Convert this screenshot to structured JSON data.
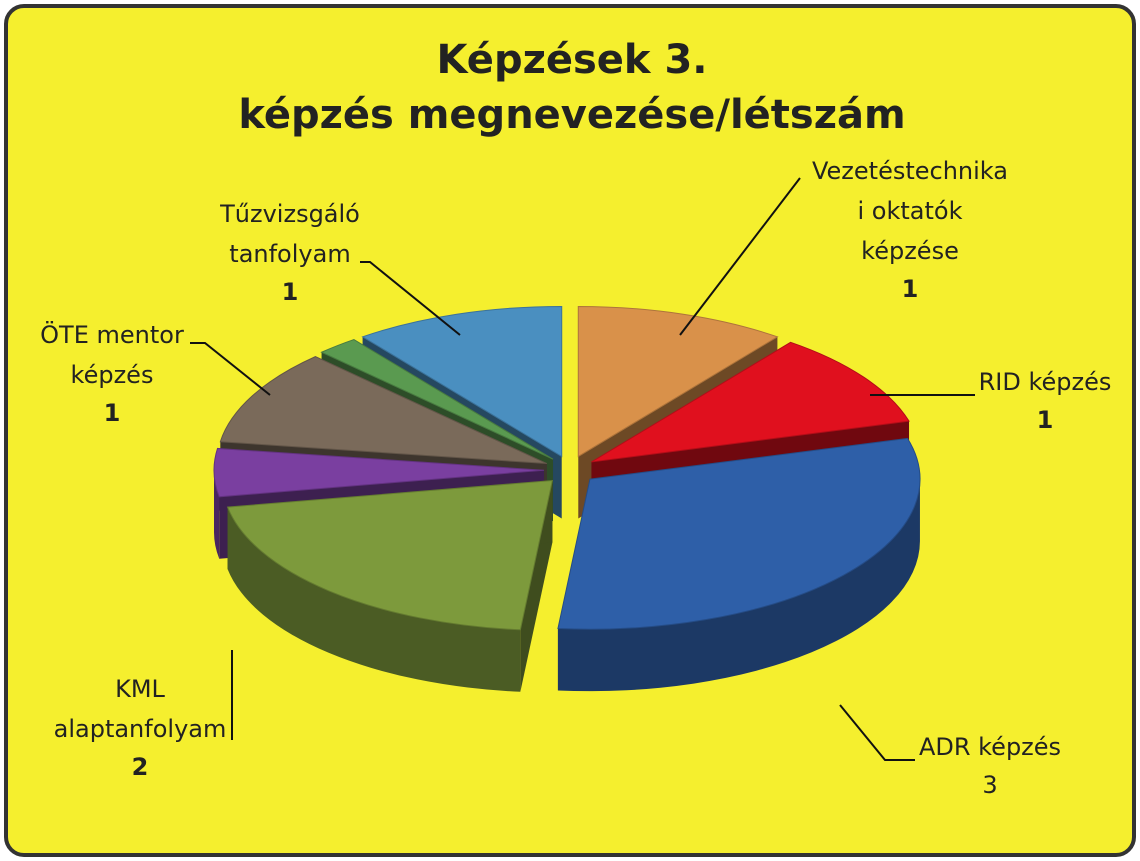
{
  "chart_data": {
    "type": "pie3d",
    "title": "Képzések 3.\nképzés megnevezése/létszám",
    "categories": [
      "Vezetéstechnika\ni oktatók\nképzése",
      "RID képzés",
      "ADR képzés",
      "KML\nalaptanfolyam",
      null,
      "ÖTE mentor\nképzés",
      null,
      "Tűzvizsgáló\ntanfolyam"
    ],
    "values": [
      1,
      1,
      3,
      2,
      0.5,
      1,
      0.2,
      1
    ],
    "colors": [
      "#d9914a",
      "#e0101e",
      "#2e5fa8",
      "#7d9a3c",
      "#7a3fa0",
      "#7a6a5a",
      "#5a9a50",
      "#4a8fc0"
    ]
  }
}
